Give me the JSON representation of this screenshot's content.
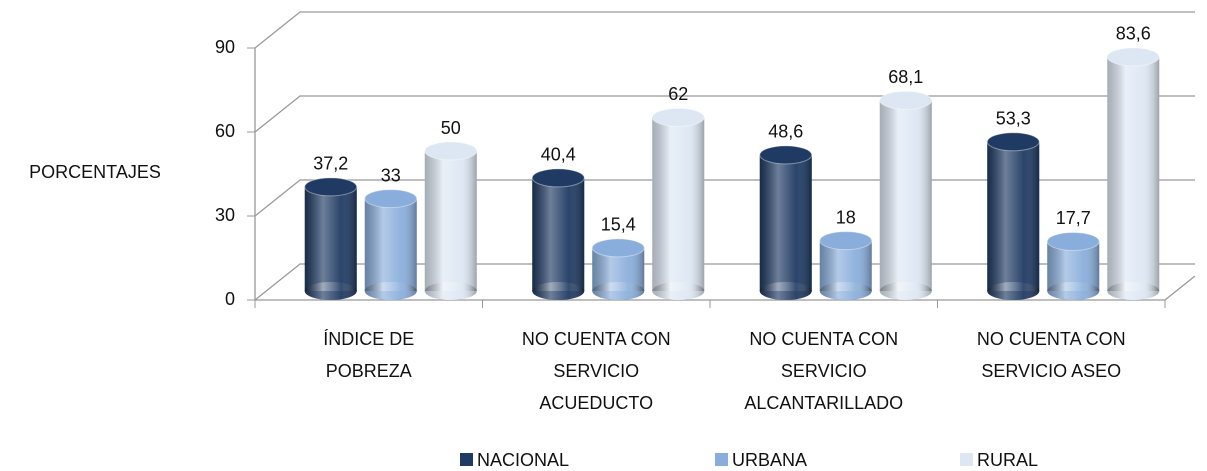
{
  "chart_data": {
    "type": "bar",
    "y_label": "PORCENTAJES",
    "categories": [
      "ÍNDICE DE\nPOBREZA",
      "NO CUENTA CON\nSERVICIO\nACUEDUCTO",
      "NO CUENTA CON\nSERVICIO\nALCANTARILLADO",
      "NO CUENTA CON\nSERVICIO ASEO"
    ],
    "series": [
      {
        "name": "NACIONAL",
        "color": "#1f3a63",
        "values": [
          37.2,
          40.4,
          48.6,
          53.3
        ],
        "value_labels": [
          "37,2",
          "40,4",
          "48,6",
          "53,3"
        ]
      },
      {
        "name": "URBANA",
        "color": "#8aaedb",
        "values": [
          33,
          15.4,
          18,
          17.7
        ],
        "value_labels": [
          "33",
          "15,4",
          "18",
          "17,7"
        ]
      },
      {
        "name": "RURAL",
        "color": "#dde7f3",
        "values": [
          50,
          62,
          68.1,
          83.6
        ],
        "value_labels": [
          "50",
          "62",
          "68,1",
          "83,6"
        ]
      }
    ],
    "ylim": [
      0,
      90
    ],
    "yticks": [
      0,
      30,
      60,
      90
    ],
    "grid": true
  }
}
